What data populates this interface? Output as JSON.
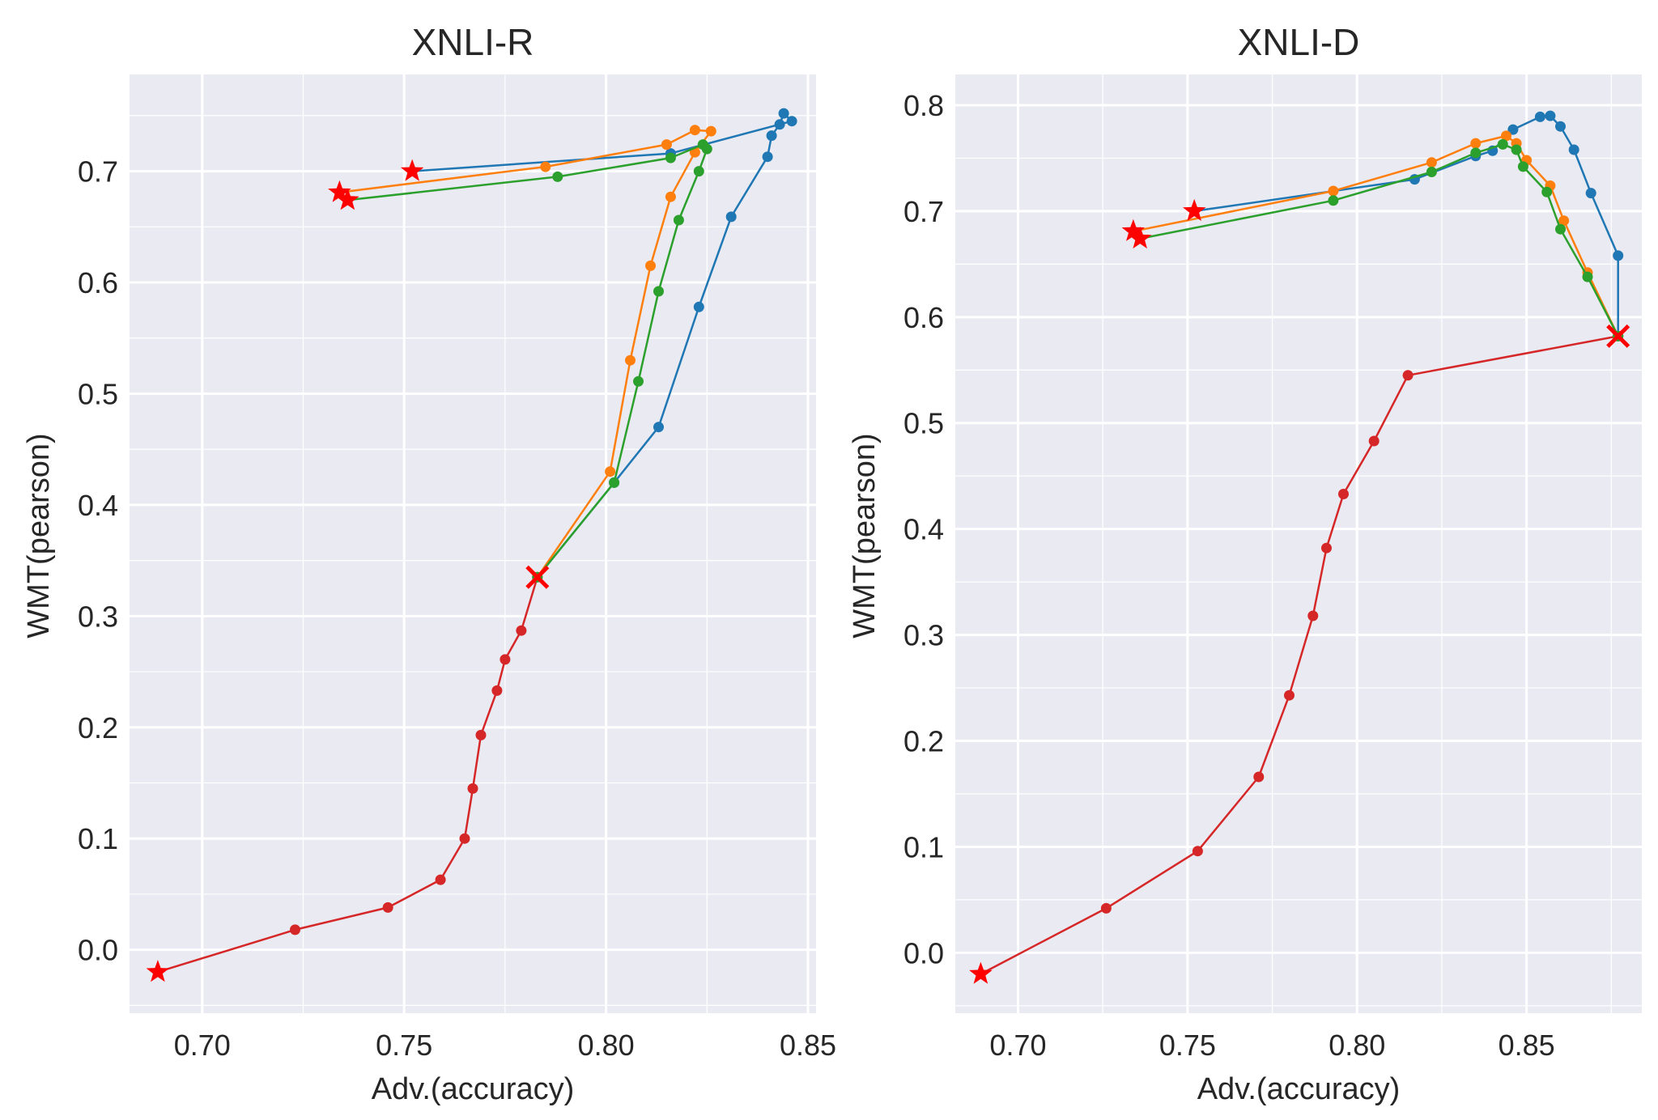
{
  "chart_data": [
    {
      "type": "line",
      "title": "XNLI-R",
      "xlabel": "Adv.(accuracy)",
      "ylabel": "WMT(pearson)",
      "xlim": [
        0.682,
        0.852
      ],
      "ylim": [
        -0.057,
        0.787
      ],
      "xticks": [
        0.7,
        0.75,
        0.8,
        0.85
      ],
      "xtick_labels": [
        "0.70",
        "0.75",
        "0.80",
        "0.85"
      ],
      "yticks": [
        0.0,
        0.1,
        0.2,
        0.3,
        0.4,
        0.5,
        0.6,
        0.7
      ],
      "ytick_labels": [
        "0.0",
        "0.1",
        "0.2",
        "0.3",
        "0.4",
        "0.5",
        "0.6",
        "0.7"
      ],
      "grid": true,
      "series": [
        {
          "name": "red",
          "color": "#d62728",
          "x": [
            0.689,
            0.723,
            0.746,
            0.759,
            0.765,
            0.767,
            0.769,
            0.773,
            0.775,
            0.779,
            0.783
          ],
          "y": [
            -0.02,
            0.018,
            0.038,
            0.063,
            0.1,
            0.145,
            0.193,
            0.233,
            0.261,
            0.287,
            0.335
          ],
          "start_marker": "star",
          "end_marker": "x"
        },
        {
          "name": "blue",
          "color": "#1f77b4",
          "x": [
            0.783,
            0.802,
            0.813,
            0.823,
            0.831,
            0.84,
            0.841,
            0.843,
            0.844,
            0.846,
            0.816,
            0.752
          ],
          "y": [
            0.335,
            0.42,
            0.47,
            0.578,
            0.659,
            0.713,
            0.732,
            0.742,
            0.752,
            0.745,
            0.716,
            0.7
          ],
          "end_marker": "star"
        },
        {
          "name": "orange",
          "color": "#ff7f0e",
          "x": [
            0.783,
            0.801,
            0.806,
            0.811,
            0.816,
            0.822,
            0.826,
            0.822,
            0.815,
            0.785,
            0.734
          ],
          "y": [
            0.335,
            0.43,
            0.53,
            0.615,
            0.677,
            0.717,
            0.736,
            0.737,
            0.724,
            0.704,
            0.681
          ],
          "end_marker": "star"
        },
        {
          "name": "green",
          "color": "#2ca02c",
          "x": [
            0.783,
            0.802,
            0.808,
            0.813,
            0.818,
            0.823,
            0.825,
            0.824,
            0.816,
            0.788,
            0.736
          ],
          "y": [
            0.335,
            0.42,
            0.511,
            0.592,
            0.656,
            0.7,
            0.72,
            0.724,
            0.712,
            0.695,
            0.674
          ],
          "end_marker": "star"
        }
      ]
    },
    {
      "type": "line",
      "title": "XNLI-D",
      "xlabel": "Adv.(accuracy)",
      "ylabel": "WMT(pearson)",
      "xlim": [
        0.6815,
        0.884
      ],
      "ylim": [
        -0.057,
        0.829
      ],
      "xticks": [
        0.7,
        0.75,
        0.8,
        0.85
      ],
      "xtick_labels": [
        "0.70",
        "0.75",
        "0.80",
        "0.85"
      ],
      "yticks": [
        0.0,
        0.1,
        0.2,
        0.3,
        0.4,
        0.5,
        0.6,
        0.7,
        0.8
      ],
      "ytick_labels": [
        "0.0",
        "0.1",
        "0.2",
        "0.3",
        "0.4",
        "0.5",
        "0.6",
        "0.7",
        "0.8"
      ],
      "grid": true,
      "series": [
        {
          "name": "red",
          "color": "#d62728",
          "x": [
            0.689,
            0.726,
            0.753,
            0.771,
            0.78,
            0.787,
            0.791,
            0.796,
            0.805,
            0.815,
            0.877
          ],
          "y": [
            -0.02,
            0.042,
            0.096,
            0.166,
            0.243,
            0.318,
            0.382,
            0.433,
            0.483,
            0.545,
            0.582
          ],
          "start_marker": "star",
          "end_marker": "x"
        },
        {
          "name": "blue",
          "color": "#1f77b4",
          "x": [
            0.877,
            0.877,
            0.869,
            0.864,
            0.86,
            0.857,
            0.854,
            0.846,
            0.84,
            0.835,
            0.817,
            0.752
          ],
          "y": [
            0.582,
            0.658,
            0.717,
            0.758,
            0.78,
            0.79,
            0.789,
            0.777,
            0.757,
            0.752,
            0.73,
            0.7
          ],
          "end_marker": "star"
        },
        {
          "name": "orange",
          "color": "#ff7f0e",
          "x": [
            0.877,
            0.868,
            0.861,
            0.857,
            0.85,
            0.847,
            0.844,
            0.835,
            0.822,
            0.793,
            0.734
          ],
          "y": [
            0.582,
            0.642,
            0.691,
            0.724,
            0.748,
            0.764,
            0.771,
            0.764,
            0.746,
            0.719,
            0.681
          ],
          "end_marker": "star"
        },
        {
          "name": "green",
          "color": "#2ca02c",
          "x": [
            0.877,
            0.868,
            0.86,
            0.856,
            0.849,
            0.847,
            0.843,
            0.835,
            0.822,
            0.793,
            0.736
          ],
          "y": [
            0.582,
            0.638,
            0.683,
            0.718,
            0.742,
            0.758,
            0.763,
            0.755,
            0.737,
            0.71,
            0.674
          ],
          "end_marker": "star"
        }
      ]
    }
  ]
}
